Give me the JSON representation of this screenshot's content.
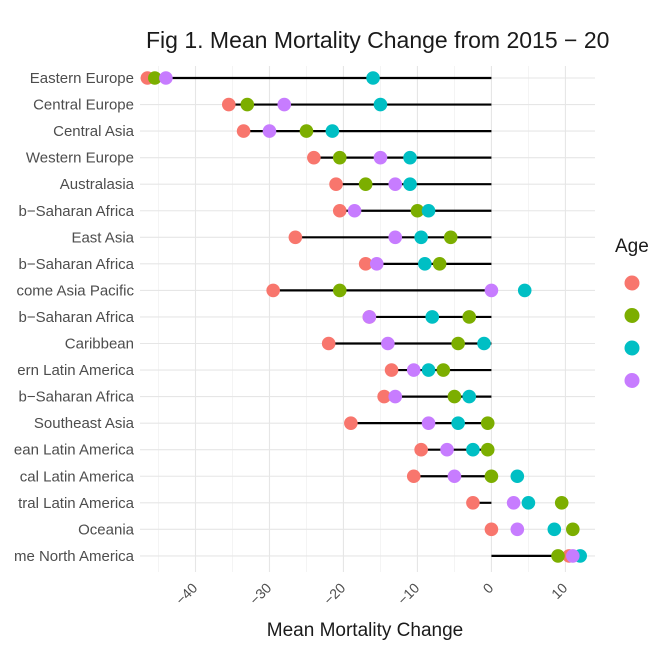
{
  "chart_data": {
    "type": "scatter",
    "title": "Fig 1. Mean Mortality Change from 2015 − 20",
    "xlabel": "Mean Mortality Change",
    "ylabel": "",
    "xlim": [
      -47.5,
      14.0
    ],
    "x_ticks": [
      -40,
      -30,
      -20,
      -10,
      0,
      10
    ],
    "x_tick_labels": [
      "−40",
      "−30",
      "−20",
      "−10",
      "0",
      "10"
    ],
    "grid": true,
    "legend_title": "Age",
    "legend_placement": "right",
    "categories": [
      "Eastern Europe",
      "Central Europe",
      "Central Asia",
      "Western Europe",
      "Australasia",
      "b−Saharan Africa",
      "East Asia",
      "b−Saharan Africa",
      "come Asia Pacific",
      "b−Saharan Africa",
      "Caribbean",
      "ern Latin America",
      "b−Saharan Africa",
      "Southeast Asia",
      "ean Latin America",
      "cal Latin America",
      "tral Latin America",
      "Oceania",
      "me North America"
    ],
    "series": [
      {
        "color": "#F8766D",
        "values": [
          -46.5,
          -35.5,
          -33.5,
          -24,
          -21,
          -20.5,
          -26.5,
          -17,
          -29.5,
          -16.5,
          -22,
          -13.5,
          -14.5,
          -19,
          -9.5,
          -10.5,
          -2.5,
          0,
          10.5
        ]
      },
      {
        "color": "#7CAE00",
        "values": [
          -45.5,
          -33,
          -25,
          -20.5,
          -17,
          -10,
          -5.5,
          -7,
          -20.5,
          -3,
          -4.5,
          -6.5,
          -5,
          -0.5,
          -0.5,
          0,
          9.5,
          11,
          9
        ]
      },
      {
        "color": "#00BFC4",
        "values": [
          -16,
          -15,
          -21.5,
          -11,
          -11,
          -8.5,
          -9.5,
          -9,
          4.5,
          -8,
          -1,
          -8.5,
          -3,
          -4.5,
          -2.5,
          3.5,
          5,
          8.5,
          12
        ]
      },
      {
        "color": "#C77CFF",
        "values": [
          -44,
          -28,
          -30,
          -15,
          -13,
          -18.5,
          -13,
          -15.5,
          0,
          -16.5,
          -14,
          -10.5,
          -13,
          -8.5,
          -6,
          -5,
          3,
          3.5,
          11
        ]
      }
    ]
  }
}
